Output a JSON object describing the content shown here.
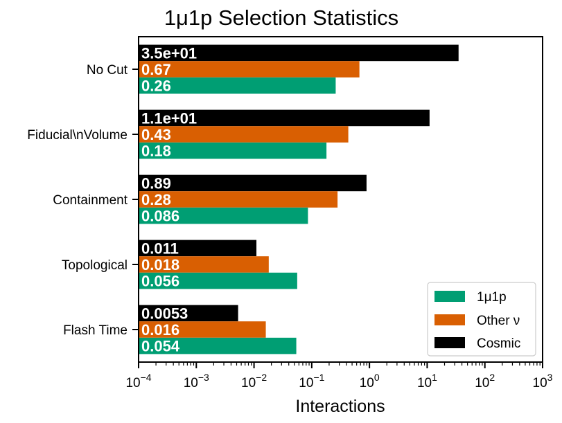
{
  "chart_data": {
    "type": "bar",
    "orientation": "horizontal",
    "title": "1μ1p Selection Statistics",
    "xlabel": "Interactions",
    "ylabel": "",
    "xscale": "log",
    "xlim": [
      0.0001,
      1000
    ],
    "x_ticks": [
      {
        "base": "10",
        "exp": "−4"
      },
      {
        "base": "10",
        "exp": "−3"
      },
      {
        "base": "10",
        "exp": "−2"
      },
      {
        "base": "10",
        "exp": "−1"
      },
      {
        "base": "10",
        "exp": "0"
      },
      {
        "base": "10",
        "exp": "1"
      },
      {
        "base": "10",
        "exp": "2"
      },
      {
        "base": "10",
        "exp": "3"
      }
    ],
    "categories": [
      "No Cut",
      "Fiducial\\nVolume",
      "Containment",
      "Topological",
      "Flash Time"
    ],
    "series": [
      {
        "name": "Cosmic",
        "color": "#000000",
        "values": [
          35,
          11,
          0.89,
          0.011,
          0.0053
        ],
        "labels": [
          "3.5e+01",
          "1.1e+01",
          "0.89",
          "0.011",
          "0.0053"
        ]
      },
      {
        "name": "Other ν",
        "color": "#d95f02",
        "values": [
          0.67,
          0.43,
          0.28,
          0.018,
          0.016
        ],
        "labels": [
          "0.67",
          "0.43",
          "0.28",
          "0.018",
          "0.016"
        ]
      },
      {
        "name": "1μ1p",
        "color": "#009e73",
        "values": [
          0.26,
          0.18,
          0.086,
          0.056,
          0.054
        ],
        "labels": [
          "0.26",
          "0.18",
          "0.086",
          "0.056",
          "0.054"
        ]
      }
    ],
    "legend": {
      "placement": "lower-right",
      "entries": [
        {
          "name": "1μ1p",
          "color": "#009e73"
        },
        {
          "name": "Other ν",
          "color": "#d95f02"
        },
        {
          "name": "Cosmic",
          "color": "#000000"
        }
      ]
    },
    "grid": false
  }
}
